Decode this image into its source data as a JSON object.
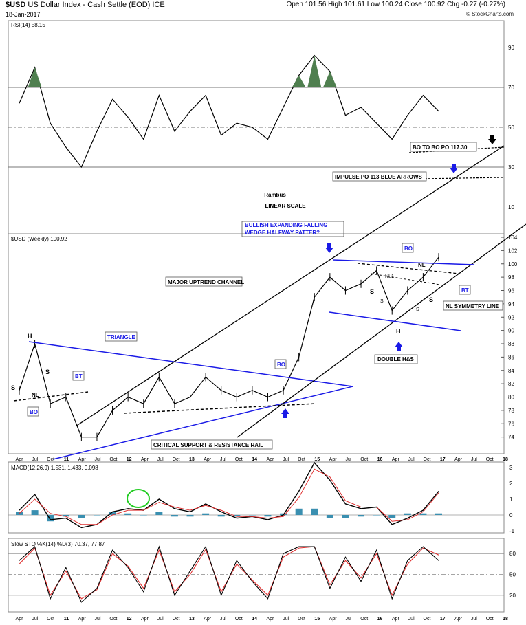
{
  "header": {
    "symbol": "$USD",
    "name": "US Dollar Index - Cash Settle (EOD)",
    "exchange": "ICE",
    "date": "18-Jan-2017",
    "ohlc": "Open 101.56  High 101.61  Low 100.24  Close 100.92  Chg -0.27 (-0.27%)",
    "brand": "© StockCharts.com"
  },
  "colors": {
    "price": "#000000",
    "pattern_lines": "#1a1ae6",
    "annotation_text": "#1a1ae6",
    "rsi_fill": "#4f7f4f",
    "macd_signal": "#e03030",
    "macd_hist": "#3a8fb0",
    "sto_d": "#e03030",
    "callout_ring": "#22cc22"
  },
  "chart_data": [
    {
      "type": "line",
      "panel": "rsi",
      "label": "RSI(14) 58.15",
      "ylim": [
        0,
        100
      ],
      "y_ticks": [
        10,
        30,
        50,
        70,
        90
      ],
      "x": [
        "Apr 10",
        "Jul 10",
        "Oct 10",
        "Jan 11",
        "Apr 11",
        "Jul 11",
        "Oct 11",
        "Jan 12",
        "Apr 12",
        "Jul 12",
        "Oct 12",
        "Jan 13",
        "Apr 13",
        "Jul 13",
        "Oct 13",
        "Jan 14",
        "Apr 14",
        "Jul 14",
        "Oct 14",
        "Jan 15",
        "Apr 15",
        "Jul 15",
        "Oct 15",
        "Jan 16",
        "Apr 16",
        "Jul 16",
        "Oct 16",
        "Jan 17"
      ],
      "values": [
        62,
        80,
        52,
        40,
        30,
        48,
        64,
        55,
        44,
        66,
        48,
        58,
        66,
        46,
        52,
        50,
        44,
        60,
        76,
        86,
        78,
        56,
        60,
        52,
        44,
        56,
        66,
        58
      ],
      "reference_levels": [
        70,
        50,
        30
      ]
    },
    {
      "type": "line",
      "panel": "price",
      "label": "$USD (Weekly) 100.92",
      "ylim": [
        72,
        104
      ],
      "y_ticks": [
        74,
        76,
        78,
        80,
        82,
        84,
        86,
        88,
        90,
        92,
        94,
        96,
        98,
        100,
        102,
        104
      ],
      "x": [
        "Apr 10",
        "Jul 10",
        "Oct 10",
        "Jan 11",
        "Apr 11",
        "Jul 11",
        "Oct 11",
        "Jan 12",
        "Apr 12",
        "Jul 12",
        "Oct 12",
        "Jan 13",
        "Apr 13",
        "Jul 13",
        "Oct 13",
        "Jan 14",
        "Apr 14",
        "Jul 14",
        "Oct 14",
        "Jan 15",
        "Apr 15",
        "Jul 15",
        "Oct 15",
        "Jan 16",
        "Apr 16",
        "Jul 16",
        "Oct 16",
        "Jan 17"
      ],
      "values": [
        81,
        88,
        79,
        80,
        74,
        74,
        78,
        80,
        79,
        83,
        79,
        80,
        83,
        81,
        80,
        81,
        80,
        81,
        86,
        95,
        98,
        96,
        97,
        99,
        93,
        96,
        98,
        101
      ],
      "annotations": [
        "TRIANGLE",
        "MAJOR UPTREND CHANNEL",
        "CRITICAL SUPPORT & RESISTANCE RAIL",
        "BULLISH EXPANDING FALLING WEDGE HALFWAY PATTER?",
        "DOUBLE H&S",
        "NL SYMMETRY LINE",
        "BO TO BO PO 117.30",
        "IMPULSE PO 113 BLUE ARROWS",
        "Rambus",
        "LINEAR SCALE"
      ]
    },
    {
      "type": "line",
      "panel": "macd",
      "label": "MACD(12,26,9) 1.531, 1.433, 0.098",
      "ylim": [
        -1,
        3
      ],
      "y_ticks": [
        -1,
        0,
        1,
        2,
        3
      ],
      "x": [
        "Apr 10",
        "Jul 10",
        "Oct 10",
        "Jan 11",
        "Apr 11",
        "Jul 11",
        "Oct 11",
        "Jan 12",
        "Apr 12",
        "Jul 12",
        "Oct 12",
        "Jan 13",
        "Apr 13",
        "Jul 13",
        "Oct 13",
        "Jan 14",
        "Apr 14",
        "Jul 14",
        "Oct 14",
        "Jan 15",
        "Apr 15",
        "Jul 15",
        "Oct 15",
        "Jan 16",
        "Apr 16",
        "Jul 16",
        "Oct 16",
        "Jan 17"
      ],
      "series": [
        {
          "name": "MACD",
          "values": [
            0.3,
            1.3,
            -0.3,
            -0.2,
            -0.8,
            -0.6,
            0.2,
            0.4,
            0.3,
            1.0,
            0.4,
            0.2,
            0.7,
            0.2,
            -0.2,
            -0.1,
            -0.3,
            0.0,
            1.5,
            3.3,
            2.2,
            0.7,
            0.4,
            0.5,
            -0.6,
            -0.2,
            0.3,
            1.5
          ]
        },
        {
          "name": "Signal",
          "values": [
            0.1,
            1.0,
            0.1,
            -0.1,
            -0.6,
            -0.6,
            0.0,
            0.3,
            0.3,
            0.8,
            0.5,
            0.3,
            0.6,
            0.3,
            -0.1,
            -0.1,
            -0.2,
            -0.1,
            1.1,
            2.9,
            2.4,
            0.9,
            0.5,
            0.5,
            -0.4,
            -0.3,
            0.2,
            1.4
          ]
        },
        {
          "name": "Histogram",
          "values": [
            0.2,
            0.3,
            -0.4,
            -0.1,
            -0.2,
            0.0,
            0.2,
            0.1,
            0.0,
            0.2,
            -0.1,
            -0.1,
            0.1,
            -0.1,
            -0.1,
            0.0,
            -0.1,
            0.1,
            0.4,
            0.4,
            -0.2,
            -0.2,
            -0.1,
            0.0,
            -0.2,
            0.1,
            0.1,
            0.1
          ]
        }
      ]
    },
    {
      "type": "line",
      "panel": "stochastic",
      "label": "Slow STO %K(14) %D(3) 70.37, 77.87",
      "ylim": [
        0,
        100
      ],
      "y_ticks": [
        20,
        50,
        80
      ],
      "x": [
        "Apr 10",
        "Jul 10",
        "Oct 10",
        "Jan 11",
        "Apr 11",
        "Jul 11",
        "Oct 11",
        "Jan 12",
        "Apr 12",
        "Jul 12",
        "Oct 12",
        "Jan 13",
        "Apr 13",
        "Jul 13",
        "Oct 13",
        "Jan 14",
        "Apr 14",
        "Jul 14",
        "Oct 14",
        "Jan 15",
        "Apr 15",
        "Jul 15",
        "Oct 15",
        "Jan 16",
        "Apr 16",
        "Jul 16",
        "Oct 16",
        "Jan 17"
      ],
      "series": [
        {
          "name": "%K",
          "values": [
            70,
            90,
            15,
            60,
            10,
            30,
            85,
            60,
            25,
            90,
            20,
            55,
            90,
            20,
            70,
            40,
            15,
            80,
            90,
            90,
            30,
            75,
            40,
            85,
            15,
            70,
            90,
            70
          ]
        },
        {
          "name": "%D",
          "values": [
            65,
            88,
            20,
            55,
            15,
            28,
            80,
            62,
            30,
            85,
            25,
            50,
            86,
            25,
            65,
            42,
            20,
            75,
            88,
            90,
            35,
            70,
            45,
            80,
            20,
            65,
            88,
            78
          ]
        }
      ]
    }
  ],
  "x_axis_labels": [
    "Apr",
    "Jul",
    "Oct",
    "11",
    "Apr",
    "Jul",
    "Oct",
    "12",
    "Apr",
    "Jul",
    "Oct",
    "13",
    "Apr",
    "Jul",
    "Oct",
    "14",
    "Apr",
    "Jul",
    "Oct",
    "15",
    "Apr",
    "Jul",
    "Oct",
    "16",
    "Apr",
    "Jul",
    "Oct",
    "17",
    "Apr",
    "Jul",
    "Oct",
    "18"
  ],
  "text": {
    "rambus": "Rambus",
    "linear": "LINEAR SCALE",
    "triangle": "TRIANGLE",
    "channel": "MAJOR UPTREND CHANNEL",
    "rail": "CRITICAL SUPPORT & RESISTANCE RAIL",
    "wedge1": "BULLISH EXPANDING FALLING",
    "wedge2": "WEDGE HALFWAY PATTER?",
    "double_hs": "DOUBLE H&S",
    "nl_sym": "NL SYMMETRY LINE",
    "bo_po": "BO TO BO PO 117.30",
    "impulse": "IMPULSE PO 113 BLUE ARROWS",
    "bo": "BO",
    "bt": "BT",
    "s": "S",
    "h": "H",
    "nl": "NL",
    "nl1": "NL1",
    "s_small": "S"
  }
}
